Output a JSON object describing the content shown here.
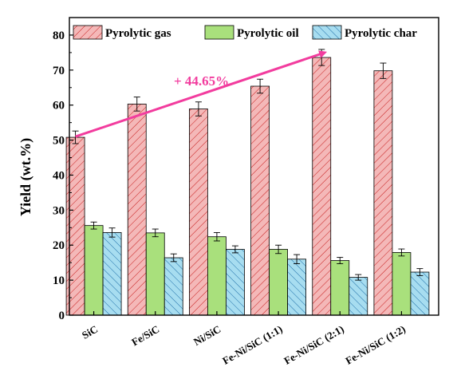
{
  "chart_data": {
    "type": "bar",
    "categories": [
      "SiC",
      "Fe/SiC",
      "Ni/SiC",
      "Fe-Ni/SiC (1:1)",
      "Fe-Ni/SiC (2:1)",
      "Fe-Ni/SiC (1:2)"
    ],
    "series": [
      {
        "name": "Pyrolytic gas",
        "values": [
          50.8,
          60.3,
          58.9,
          65.4,
          73.6,
          69.8
        ],
        "errors": [
          1.8,
          2.0,
          2.0,
          2.0,
          2.3,
          2.2
        ],
        "color": "#f4b8b8",
        "edge": "#c81e1e",
        "pattern": "forward-hatch"
      },
      {
        "name": "Pyrolytic oil",
        "values": [
          25.6,
          23.5,
          22.4,
          18.8,
          15.6,
          17.9
        ],
        "errors": [
          1.0,
          1.1,
          1.2,
          1.2,
          0.9,
          1.0
        ],
        "color": "#a9e07c",
        "edge": "#2e7d12",
        "pattern": "solid"
      },
      {
        "name": "Pyrolytic char",
        "values": [
          23.6,
          16.4,
          18.8,
          16.0,
          10.8,
          12.3
        ],
        "errors": [
          1.3,
          1.1,
          1.0,
          1.3,
          0.8,
          1.0
        ],
        "color": "#a7ddf0",
        "edge": "#1f6fa8",
        "pattern": "back-hatch"
      }
    ],
    "ylabel": "Yield (wt.%)",
    "xlabel": "",
    "ylim": [
      0,
      85
    ],
    "yticks": [
      0,
      10,
      20,
      30,
      40,
      50,
      60,
      70,
      80
    ],
    "legend": "top",
    "annotation": {
      "text": "+ 44.65%",
      "color": "#f23c9e",
      "from": {
        "category": "SiC",
        "value": 51
      },
      "to": {
        "category": "Fe-Ni/SiC (2:1)",
        "value": 75
      }
    },
    "grid": false
  }
}
